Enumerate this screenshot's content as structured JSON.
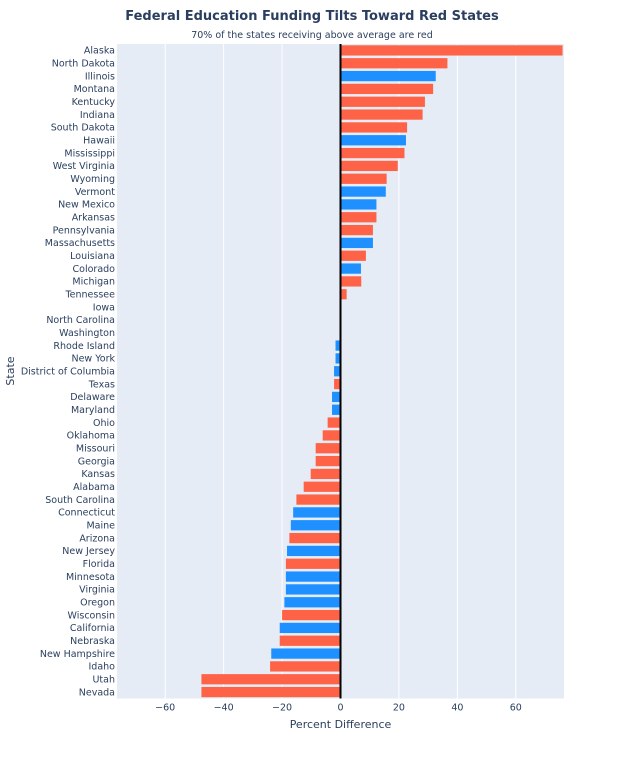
{
  "chart_data": {
    "type": "bar",
    "orientation": "horizontal",
    "title": "Federal Education Funding Tilts Toward Red States",
    "subtitle": "70% of the states receiving above average are red",
    "xlabel": "Percent Difference",
    "ylabel": "State",
    "xlim": [
      -76.5,
      76.5
    ],
    "xticks": [
      -60,
      -40,
      -20,
      0,
      20,
      40,
      60
    ],
    "grid": true,
    "colors": {
      "red": "#FF6347",
      "blue": "#1E90FF",
      "plot_bg": "#E5ECF6"
    },
    "categories": [
      "Alaska",
      "North Dakota",
      "Illinois",
      "Montana",
      "Kentucky",
      "Indiana",
      "South Dakota",
      "Hawaii",
      "Mississippi",
      "West Virginia",
      "Wyoming",
      "Vermont",
      "New Mexico",
      "Arkansas",
      "Pennsylvania",
      "Massachusetts",
      "Louisiana",
      "Colorado",
      "Michigan",
      "Tennessee",
      "Iowa",
      "North Carolina",
      "Washington",
      "Rhode Island",
      "New York",
      "District of Columbia",
      "Texas",
      "Delaware",
      "Maryland",
      "Ohio",
      "Oklahoma",
      "Missouri",
      "Georgia",
      "Kansas",
      "Alabama",
      "South Carolina",
      "Connecticut",
      "Maine",
      "Arizona",
      "New Jersey",
      "Florida",
      "Minnesota",
      "Virginia",
      "Oregon",
      "Wisconsin",
      "California",
      "Nebraska",
      "New Hampshire",
      "Idaho",
      "Utah",
      "Nevada"
    ],
    "values": [
      76,
      36.6,
      32.6,
      31.7,
      28.9,
      28.1,
      22.8,
      22.4,
      21.9,
      19.6,
      15.8,
      15.5,
      12.3,
      12.3,
      11.1,
      11.1,
      8.7,
      7.0,
      7.1,
      2.1,
      0,
      0,
      0,
      -1.7,
      -1.7,
      -2.2,
      -2.2,
      -2.9,
      -2.9,
      -4.4,
      -6.1,
      -8.5,
      -8.5,
      -10.2,
      -12.6,
      -15.1,
      -16.2,
      -17.0,
      -17.5,
      -18.3,
      -18.7,
      -18.7,
      -18.7,
      -19.2,
      -20.0,
      -20.8,
      -20.8,
      -23.7,
      -24.1,
      -47.6,
      -47.6
    ],
    "party": [
      "red",
      "red",
      "blue",
      "red",
      "red",
      "red",
      "red",
      "blue",
      "red",
      "red",
      "red",
      "blue",
      "blue",
      "red",
      "red",
      "blue",
      "red",
      "blue",
      "red",
      "red",
      "red",
      "red",
      "blue",
      "blue",
      "blue",
      "blue",
      "red",
      "blue",
      "blue",
      "red",
      "red",
      "red",
      "red",
      "red",
      "red",
      "red",
      "blue",
      "blue",
      "red",
      "blue",
      "red",
      "blue",
      "blue",
      "blue",
      "red",
      "blue",
      "red",
      "blue",
      "red",
      "red",
      "red"
    ]
  }
}
